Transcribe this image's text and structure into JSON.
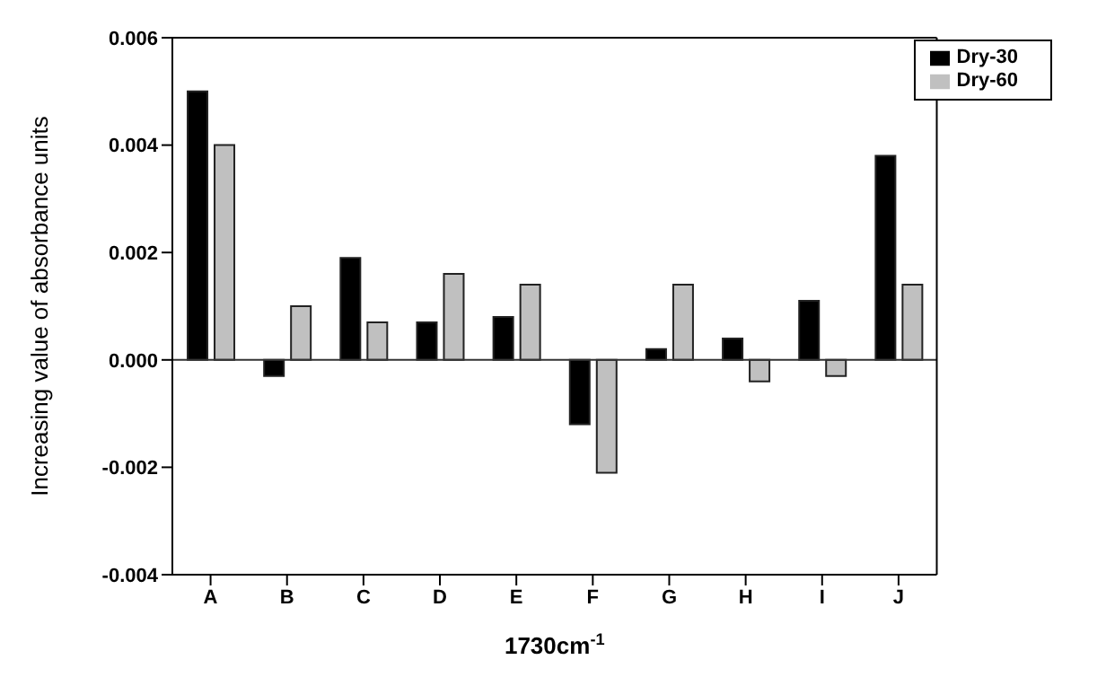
{
  "chart_data": {
    "type": "bar",
    "xlabel": "1730cm$^{-1}$",
    "ylabel": "Increasing value of absorbance units",
    "categories": [
      "A",
      "B",
      "C",
      "D",
      "E",
      "F",
      "G",
      "H",
      "I",
      "J"
    ],
    "series": [
      {
        "name": "Dry-30",
        "color": "#000000",
        "values": [
          0.005,
          -0.0003,
          0.0019,
          0.0007,
          0.0008,
          -0.0012,
          0.0002,
          0.0004,
          0.0011,
          0.0038
        ]
      },
      {
        "name": "Dry-60",
        "color": "#c0c0c0",
        "values": [
          0.004,
          0.001,
          0.0007,
          0.0016,
          0.0014,
          -0.0021,
          0.0014,
          -0.0004,
          -0.0003,
          0.0014
        ]
      }
    ],
    "ylim": [
      -0.004,
      0.006
    ],
    "yticks": [
      -0.004,
      -0.002,
      {
        "value": 0,
        "label": "0.000"
      },
      0.002,
      0.004,
      0.006
    ],
    "ref_lines": [
      {
        "axis": "y",
        "value": 0,
        "color": "#333333"
      }
    ],
    "legend": "top right"
  }
}
